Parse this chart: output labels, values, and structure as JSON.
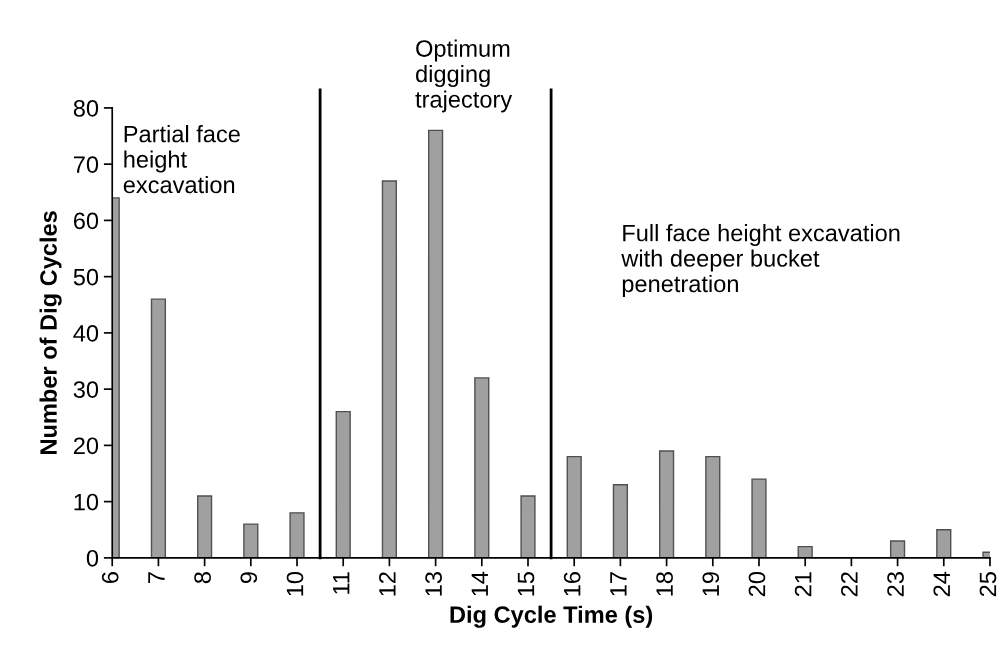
{
  "chart_data": {
    "type": "bar",
    "xlabel": "Dig Cycle Time (s)",
    "ylabel": "Number of Dig Cycles",
    "x": [
      6,
      7,
      8,
      9,
      10,
      11,
      12,
      13,
      14,
      15,
      16,
      17,
      18,
      19,
      20,
      21,
      22,
      23,
      24,
      25
    ],
    "values": [
      64,
      46,
      11,
      6,
      8,
      26,
      67,
      76,
      32,
      11,
      18,
      13,
      19,
      18,
      14,
      2,
      0,
      3,
      5,
      1
    ],
    "color": "#a0a0a0",
    "xlim": [
      6,
      25
    ],
    "xticks": [
      6,
      7,
      8,
      9,
      10,
      11,
      12,
      13,
      14,
      15,
      16,
      17,
      18,
      19,
      20,
      21,
      22,
      23,
      24,
      25
    ],
    "ylim": [
      0,
      80
    ],
    "yticks": [
      0,
      10,
      20,
      30,
      40,
      50,
      60,
      70,
      80
    ],
    "ref_lines": [
      {
        "axis": "x",
        "value": 10.5,
        "color": "#000000"
      },
      {
        "axis": "x",
        "value": 15.5,
        "color": "#000000"
      }
    ],
    "annotations": [
      "Partial face\nheight\nexcavation",
      "Optimum\ndigging\ntrajectory",
      "Full face height excavation\nwith deeper bucket\npenetration"
    ],
    "grid": false,
    "legend": false
  }
}
